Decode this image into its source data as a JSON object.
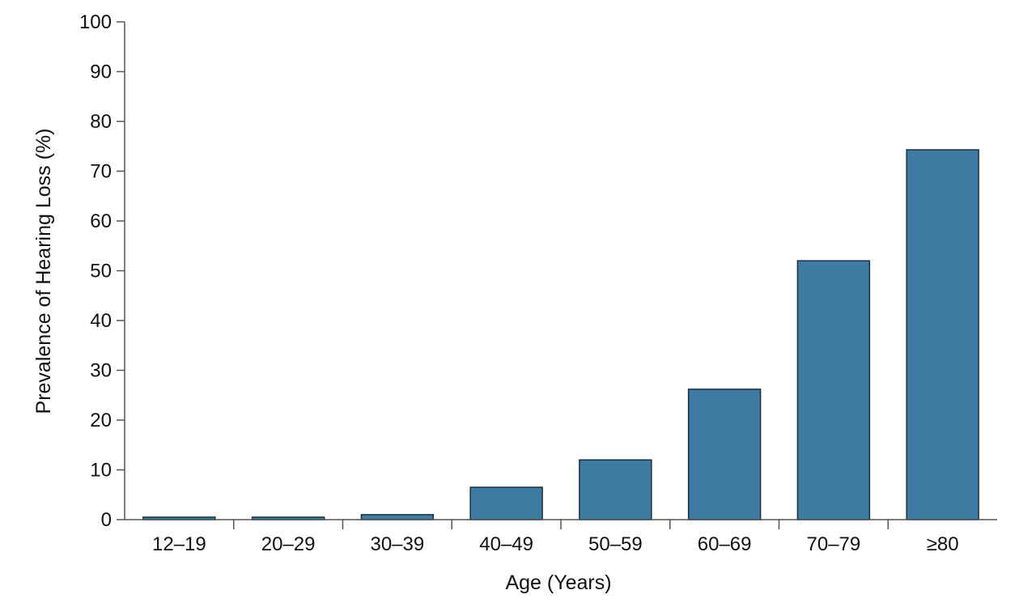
{
  "chart_data": {
    "type": "bar",
    "title": "",
    "xlabel": "Age (Years)",
    "ylabel": "Prevalence of Hearing Loss (%)",
    "categories": [
      "12–19",
      "20–29",
      "30–39",
      "40–49",
      "50–59",
      "60–69",
      "70–79",
      "≥80"
    ],
    "values": [
      0.5,
      0.5,
      1.0,
      6.5,
      12.0,
      26.2,
      52.0,
      74.3
    ],
    "ylim": [
      0,
      100
    ],
    "yticks": [
      0,
      10,
      20,
      30,
      40,
      50,
      60,
      70,
      80,
      90,
      100
    ],
    "grid": false,
    "legend": "none",
    "colors": {
      "bar_fill": "#3e7aa1",
      "bar_stroke": "#1c2f3c",
      "axis": "#555555",
      "text": "#111111"
    }
  }
}
